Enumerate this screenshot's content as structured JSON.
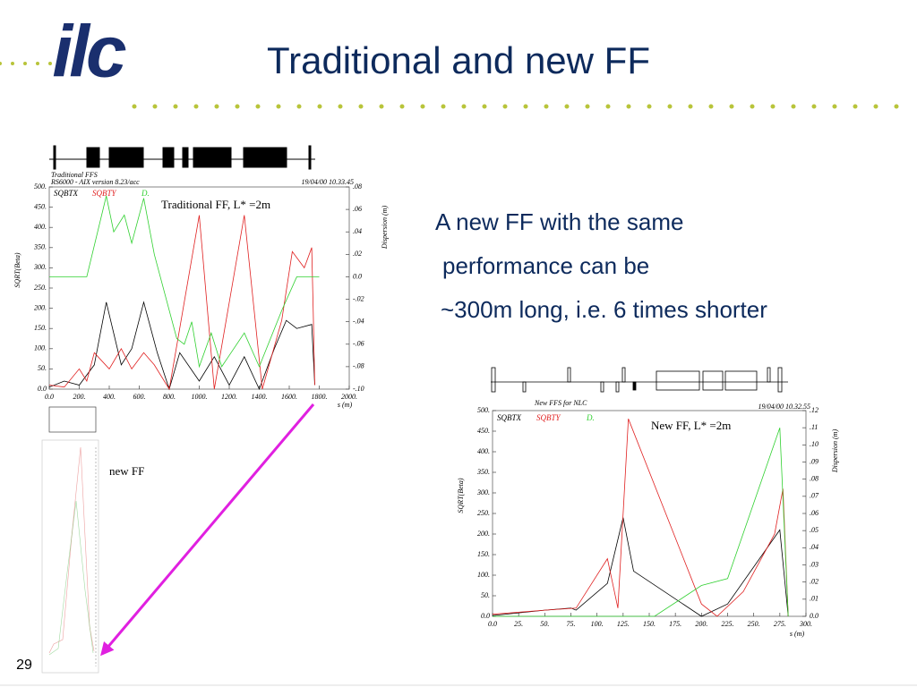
{
  "logo": "ilc",
  "title": "Traditional and new FF",
  "text": [
    "A new FF with the same",
    "performance can be",
    "~300m long, i.e. 6 times shorter"
  ],
  "small_plot_label": "new FF",
  "page_number": "29",
  "chart_data": [
    {
      "type": "line",
      "subtitle": [
        "Traditional FFS",
        "RS6000 - AIX version 8.23/acc"
      ],
      "timestamp": "19/04/00  10.33.45",
      "annotation": "Traditional FF, L* =2m",
      "ylabel": "SQRT(Beta)",
      "y2label": "Dispersion  (m)",
      "xlabel": "s (m)",
      "xlim": [
        0,
        2000
      ],
      "xticks": [
        {
          "value": 0,
          "label": "0.0"
        },
        {
          "value": 200,
          "label": "200."
        },
        {
          "value": 400,
          "label": "400."
        },
        {
          "value": 600,
          "label": "600."
        },
        {
          "value": 800,
          "label": "800."
        },
        {
          "value": 1000,
          "label": "1000."
        },
        {
          "value": 1200,
          "label": "1200."
        },
        {
          "value": 1400,
          "label": "1400."
        },
        {
          "value": 1600,
          "label": "1600."
        },
        {
          "value": 1800,
          "label": "1800."
        },
        {
          "value": 2000,
          "label": "2000."
        }
      ],
      "ylim": [
        0,
        500
      ],
      "yticks": [
        {
          "value": 0,
          "label": "0.0"
        },
        {
          "value": 50,
          "label": "50."
        },
        {
          "value": 100,
          "label": "100."
        },
        {
          "value": 150,
          "label": "150."
        },
        {
          "value": 200,
          "label": "200."
        },
        {
          "value": 250,
          "label": "250."
        },
        {
          "value": 300,
          "label": "300."
        },
        {
          "value": 350,
          "label": "350."
        },
        {
          "value": 400,
          "label": "400."
        },
        {
          "value": 450,
          "label": "450."
        },
        {
          "value": 500,
          "label": "500."
        }
      ],
      "y2lim": [
        -0.1,
        0.08
      ],
      "y2ticks": [
        {
          "value": 0.08,
          "label": ".08"
        },
        {
          "value": 0.06,
          "label": ".06"
        },
        {
          "value": 0.04,
          "label": ".04"
        },
        {
          "value": 0.02,
          "label": ".02"
        },
        {
          "value": 0,
          "label": "0.0"
        },
        {
          "value": -0.02,
          "label": "-.02"
        },
        {
          "value": -0.04,
          "label": "-.04"
        },
        {
          "value": -0.06,
          "label": "-.06"
        },
        {
          "value": -0.08,
          "label": "-.08"
        },
        {
          "value": -0.1,
          "label": "-.10"
        }
      ],
      "series": [
        {
          "name": "SQBTX",
          "color": "#000000",
          "x": [
            0,
            100,
            200,
            300,
            380,
            480,
            550,
            630,
            720,
            800,
            870,
            1000,
            1100,
            1200,
            1300,
            1400,
            1500,
            1580,
            1650,
            1750,
            1770
          ],
          "values": [
            5,
            20,
            10,
            60,
            215,
            60,
            100,
            215,
            90,
            0,
            90,
            20,
            80,
            10,
            80,
            0,
            100,
            170,
            150,
            160,
            10
          ]
        },
        {
          "name": "SQBTY",
          "color": "#e02020",
          "x": [
            0,
            100,
            200,
            250,
            300,
            400,
            480,
            550,
            630,
            700,
            800,
            1000,
            1100,
            1300,
            1420,
            1550,
            1620,
            1700,
            1750,
            1760,
            1770
          ],
          "values": [
            10,
            5,
            50,
            20,
            90,
            50,
            100,
            50,
            90,
            60,
            0,
            430,
            0,
            430,
            0,
            170,
            340,
            300,
            350,
            190,
            10
          ]
        },
        {
          "name": "D.",
          "color": "#30d030",
          "axis": "y2",
          "x": [
            0,
            250,
            380,
            430,
            500,
            550,
            630,
            700,
            850,
            900,
            950,
            1000,
            1080,
            1150,
            1300,
            1400,
            1550,
            1650,
            1800
          ],
          "values": [
            0,
            0,
            0.072,
            0.04,
            0.055,
            0.03,
            0.07,
            0.02,
            -0.055,
            -0.06,
            -0.04,
            -0.08,
            -0.05,
            -0.08,
            -0.05,
            -0.08,
            -0.03,
            0,
            0
          ]
        }
      ]
    },
    {
      "type": "line",
      "subtitle": [
        "New FFS for NLC"
      ],
      "timestamp": "19/04/00  10.32.55",
      "annotation": "New FF, L* =2m",
      "ylabel": "SQRT(Beta)",
      "y2label": "Dispersion  (m)",
      "xlabel": "s (m)",
      "xlim": [
        0,
        300
      ],
      "xticks": [
        {
          "value": 0,
          "label": "0.0"
        },
        {
          "value": 25,
          "label": "25."
        },
        {
          "value": 50,
          "label": "50."
        },
        {
          "value": 75,
          "label": "75."
        },
        {
          "value": 100,
          "label": "100."
        },
        {
          "value": 125,
          "label": "125."
        },
        {
          "value": 150,
          "label": "150."
        },
        {
          "value": 175,
          "label": "175."
        },
        {
          "value": 200,
          "label": "200."
        },
        {
          "value": 225,
          "label": "225."
        },
        {
          "value": 250,
          "label": "250."
        },
        {
          "value": 275,
          "label": "275."
        },
        {
          "value": 300,
          "label": "300."
        }
      ],
      "ylim": [
        0,
        500
      ],
      "yticks": [
        {
          "value": 0,
          "label": "0.0"
        },
        {
          "value": 50,
          "label": "50."
        },
        {
          "value": 100,
          "label": "100."
        },
        {
          "value": 150,
          "label": "150."
        },
        {
          "value": 200,
          "label": "200."
        },
        {
          "value": 250,
          "label": "250."
        },
        {
          "value": 300,
          "label": "300."
        },
        {
          "value": 350,
          "label": "350."
        },
        {
          "value": 400,
          "label": "400."
        },
        {
          "value": 450,
          "label": "450."
        },
        {
          "value": 500,
          "label": "500."
        }
      ],
      "y2lim": [
        0,
        0.12
      ],
      "y2ticks": [
        {
          "value": 0.12,
          "label": ".12"
        },
        {
          "value": 0.11,
          "label": ".11"
        },
        {
          "value": 0.1,
          "label": ".10"
        },
        {
          "value": 0.09,
          "label": ".09"
        },
        {
          "value": 0.08,
          "label": ".08"
        },
        {
          "value": 0.07,
          "label": ".07"
        },
        {
          "value": 0.06,
          "label": ".06"
        },
        {
          "value": 0.05,
          "label": ".05"
        },
        {
          "value": 0.04,
          "label": ".04"
        },
        {
          "value": 0.03,
          "label": ".03"
        },
        {
          "value": 0.02,
          "label": ".02"
        },
        {
          "value": 0.01,
          "label": ".01"
        },
        {
          "value": 0,
          "label": "0.0"
        }
      ],
      "series": [
        {
          "name": "SQBTX",
          "color": "#000000",
          "x": [
            0,
            50,
            75,
            80,
            110,
            125,
            135,
            200,
            225,
            275,
            283
          ],
          "values": [
            2,
            15,
            20,
            15,
            80,
            240,
            110,
            0,
            30,
            210,
            0
          ]
        },
        {
          "name": "SQBTY",
          "color": "#e02020",
          "x": [
            0,
            50,
            80,
            110,
            120,
            130,
            200,
            215,
            240,
            270,
            278,
            283
          ],
          "values": [
            5,
            15,
            20,
            140,
            20,
            480,
            30,
            0,
            60,
            200,
            310,
            0
          ]
        },
        {
          "name": "D.",
          "color": "#30d030",
          "axis": "y2",
          "x": [
            0,
            155,
            200,
            225,
            275,
            283
          ],
          "values": [
            0,
            0,
            0.018,
            0.022,
            0.11,
            0
          ]
        }
      ]
    }
  ]
}
